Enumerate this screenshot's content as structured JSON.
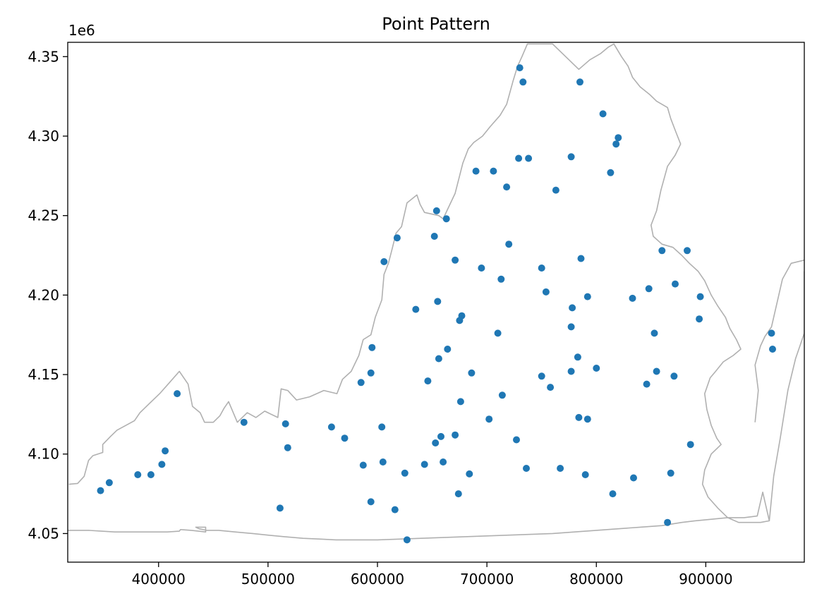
{
  "chart_data": {
    "type": "scatter",
    "title": "Point Pattern",
    "xlabel": "",
    "ylabel": "",
    "y_offset_label": "1e6",
    "xlim": [
      317000,
      990000
    ],
    "ylim": [
      4032000,
      4359000
    ],
    "xticks": [
      400000,
      500000,
      600000,
      700000,
      800000,
      900000
    ],
    "xtick_labels": [
      "400000",
      "500000",
      "600000",
      "700000",
      "800000",
      "900000"
    ],
    "yticks": [
      4050000,
      4100000,
      4150000,
      4200000,
      4250000,
      4300000,
      4350000
    ],
    "ytick_labels": [
      "4.05",
      "4.10",
      "4.15",
      "4.20",
      "4.25",
      "4.30",
      "4.35"
    ],
    "grid": false,
    "colors": {
      "points": "#1f77b4",
      "boundary": "#b0b0b0",
      "axes": "#000000"
    },
    "boundary": [
      [
        318000,
        4081000
      ],
      [
        326000,
        4081500
      ],
      [
        332000,
        4086000
      ],
      [
        336000,
        4096000
      ],
      [
        340000,
        4099000
      ],
      [
        349000,
        4101000
      ],
      [
        349000,
        4106000
      ],
      [
        356000,
        4111000
      ],
      [
        362000,
        4115000
      ],
      [
        370000,
        4118000
      ],
      [
        378000,
        4121000
      ],
      [
        383000,
        4126000
      ],
      [
        392000,
        4132000
      ],
      [
        401000,
        4138000
      ],
      [
        410000,
        4145000
      ],
      [
        419000,
        4152000
      ],
      [
        427000,
        4144000
      ],
      [
        431000,
        4130000
      ],
      [
        438000,
        4126000
      ],
      [
        442000,
        4120000
      ],
      [
        450000,
        4120000
      ],
      [
        456000,
        4124000
      ],
      [
        460000,
        4129000
      ],
      [
        464000,
        4133000
      ],
      [
        472000,
        4120000
      ],
      [
        481000,
        4126000
      ],
      [
        489000,
        4123000
      ],
      [
        497000,
        4127000
      ],
      [
        509000,
        4123000
      ],
      [
        512000,
        4141000
      ],
      [
        518000,
        4140000
      ],
      [
        526000,
        4134000
      ],
      [
        538000,
        4136000
      ],
      [
        551000,
        4140000
      ],
      [
        563000,
        4138000
      ],
      [
        568000,
        4147000
      ],
      [
        576000,
        4152000
      ],
      [
        583000,
        4162000
      ],
      [
        587000,
        4172000
      ],
      [
        594000,
        4175000
      ],
      [
        598000,
        4186000
      ],
      [
        604000,
        4197000
      ],
      [
        606000,
        4213000
      ],
      [
        610000,
        4220000
      ],
      [
        613000,
        4228000
      ],
      [
        617000,
        4239000
      ],
      [
        622000,
        4243000
      ],
      [
        627000,
        4258000
      ],
      [
        636000,
        4263000
      ],
      [
        639000,
        4257000
      ],
      [
        643000,
        4252000
      ],
      [
        656000,
        4250000
      ],
      [
        660000,
        4248000
      ],
      [
        671000,
        4264000
      ],
      [
        678000,
        4283000
      ],
      [
        683000,
        4292000
      ],
      [
        688000,
        4296000
      ],
      [
        696000,
        4300000
      ],
      [
        703000,
        4306000
      ],
      [
        712000,
        4313000
      ],
      [
        718000,
        4320000
      ],
      [
        724000,
        4335000
      ],
      [
        728000,
        4344000
      ],
      [
        732000,
        4350000
      ],
      [
        737000,
        4358000
      ],
      [
        760000,
        4358000
      ],
      [
        772000,
        4350000
      ],
      [
        784000,
        4342000
      ],
      [
        794000,
        4348000
      ],
      [
        804000,
        4352000
      ],
      [
        811000,
        4356000
      ],
      [
        816000,
        4358000
      ],
      [
        823000,
        4350000
      ],
      [
        829000,
        4344000
      ],
      [
        833000,
        4337000
      ],
      [
        840000,
        4331000
      ],
      [
        849000,
        4326000
      ],
      [
        855000,
        4322000
      ],
      [
        865000,
        4318000
      ],
      [
        868000,
        4311000
      ],
      [
        873000,
        4302000
      ],
      [
        877000,
        4295000
      ],
      [
        872000,
        4288000
      ],
      [
        865000,
        4281000
      ],
      [
        859000,
        4266000
      ],
      [
        855000,
        4253000
      ],
      [
        850000,
        4244000
      ],
      [
        852000,
        4237000
      ],
      [
        860000,
        4232000
      ],
      [
        870000,
        4230000
      ],
      [
        878000,
        4225000
      ],
      [
        885000,
        4220000
      ],
      [
        893000,
        4215000
      ],
      [
        899000,
        4209000
      ],
      [
        905000,
        4200000
      ],
      [
        911000,
        4193000
      ],
      [
        918000,
        4186000
      ],
      [
        922000,
        4179000
      ],
      [
        928000,
        4172000
      ],
      [
        932000,
        4166000
      ],
      [
        925000,
        4162000
      ],
      [
        916000,
        4158000
      ],
      [
        909000,
        4152000
      ],
      [
        904000,
        4148000
      ],
      [
        899000,
        4138000
      ],
      [
        901000,
        4128000
      ],
      [
        905000,
        4118000
      ],
      [
        910000,
        4110000
      ],
      [
        914000,
        4106000
      ],
      [
        905000,
        4100000
      ],
      [
        899000,
        4090000
      ],
      [
        897000,
        4081000
      ],
      [
        902000,
        4073000
      ],
      [
        911000,
        4066000
      ],
      [
        920000,
        4060000
      ],
      [
        930000,
        4057000
      ],
      [
        942000,
        4057000
      ],
      [
        950000,
        4057000
      ],
      [
        958000,
        4058000
      ],
      [
        952000,
        4076000
      ],
      [
        947000,
        4061000
      ],
      [
        935000,
        4060000
      ],
      [
        920000,
        4060000
      ],
      [
        906000,
        4059000
      ],
      [
        890000,
        4058000
      ],
      [
        878000,
        4057000
      ],
      [
        860000,
        4055000
      ],
      [
        840000,
        4054000
      ],
      [
        820000,
        4053000
      ],
      [
        800000,
        4052000
      ],
      [
        780000,
        4051000
      ],
      [
        760000,
        4050000
      ],
      [
        740000,
        4049500
      ],
      [
        720000,
        4049000
      ],
      [
        700000,
        4048500
      ],
      [
        680000,
        4048000
      ],
      [
        660000,
        4047500
      ],
      [
        640000,
        4047000
      ],
      [
        620000,
        4046500
      ],
      [
        600000,
        4046000
      ],
      [
        580000,
        4046000
      ],
      [
        562000,
        4046000
      ],
      [
        548000,
        4046500
      ],
      [
        532000,
        4047000
      ],
      [
        515000,
        4048000
      ],
      [
        500000,
        4049000
      ],
      [
        486000,
        4050000
      ],
      [
        470000,
        4051000
      ],
      [
        455000,
        4052000
      ],
      [
        444000,
        4052000
      ],
      [
        437000,
        4053000
      ],
      [
        434000,
        4054000
      ],
      [
        443000,
        4054000
      ],
      [
        443000,
        4051000
      ],
      [
        430000,
        4052000
      ],
      [
        420000,
        4052500
      ],
      [
        419000,
        4051500
      ],
      [
        408000,
        4051000
      ],
      [
        396000,
        4051000
      ],
      [
        384000,
        4051000
      ],
      [
        372000,
        4051000
      ],
      [
        360000,
        4051000
      ],
      [
        348000,
        4051500
      ],
      [
        336000,
        4052000
      ],
      [
        324000,
        4052000
      ],
      [
        317000,
        4052000
      ]
    ],
    "eastern_shore": [
      [
        945000,
        4120000
      ],
      [
        948000,
        4140000
      ],
      [
        945000,
        4156000
      ],
      [
        950000,
        4168000
      ],
      [
        954000,
        4174000
      ],
      [
        960000,
        4180000
      ],
      [
        966000,
        4198000
      ],
      [
        970000,
        4210000
      ],
      [
        978000,
        4220000
      ],
      [
        990000,
        4222000
      ]
    ],
    "eastern_shore_2": [
      [
        958000,
        4058000
      ],
      [
        962000,
        4086000
      ],
      [
        968000,
        4110000
      ],
      [
        975000,
        4140000
      ],
      [
        982000,
        4160000
      ],
      [
        990000,
        4176000
      ],
      [
        990000,
        4215000
      ]
    ],
    "points": [
      [
        347000,
        4077000
      ],
      [
        355000,
        4082000
      ],
      [
        381000,
        4087000
      ],
      [
        393000,
        4087000
      ],
      [
        403000,
        4093500
      ],
      [
        406000,
        4102000
      ],
      [
        417000,
        4138000
      ],
      [
        478000,
        4120000
      ],
      [
        511000,
        4066000
      ],
      [
        516000,
        4119000
      ],
      [
        518000,
        4104000
      ],
      [
        558000,
        4117000
      ],
      [
        570000,
        4110000
      ],
      [
        585000,
        4145000
      ],
      [
        587000,
        4093000
      ],
      [
        594000,
        4070000
      ],
      [
        594000,
        4151000
      ],
      [
        595000,
        4167000
      ],
      [
        604000,
        4117000
      ],
      [
        605000,
        4095000
      ],
      [
        606000,
        4221000
      ],
      [
        616000,
        4065000
      ],
      [
        618000,
        4236000
      ],
      [
        625000,
        4088000
      ],
      [
        627000,
        4046000
      ],
      [
        635000,
        4191000
      ],
      [
        643000,
        4093500
      ],
      [
        646000,
        4146000
      ],
      [
        652000,
        4237000
      ],
      [
        653000,
        4107000
      ],
      [
        654000,
        4253000
      ],
      [
        655000,
        4196000
      ],
      [
        656000,
        4160000
      ],
      [
        658000,
        4111000
      ],
      [
        660000,
        4095000
      ],
      [
        663000,
        4248000
      ],
      [
        664000,
        4166000
      ],
      [
        671000,
        4112000
      ],
      [
        671000,
        4222000
      ],
      [
        674000,
        4075000
      ],
      [
        675000,
        4184000
      ],
      [
        676000,
        4133000
      ],
      [
        677000,
        4187000
      ],
      [
        684000,
        4087500
      ],
      [
        686000,
        4151000
      ],
      [
        690000,
        4278000
      ],
      [
        695000,
        4217000
      ],
      [
        702000,
        4122000
      ],
      [
        706000,
        4278000
      ],
      [
        710000,
        4176000
      ],
      [
        713000,
        4210000
      ],
      [
        714000,
        4137000
      ],
      [
        718000,
        4268000
      ],
      [
        720000,
        4232000
      ],
      [
        727000,
        4109000
      ],
      [
        729000,
        4286000
      ],
      [
        730000,
        4343000
      ],
      [
        733000,
        4334000
      ],
      [
        736000,
        4091000
      ],
      [
        738000,
        4286000
      ],
      [
        763000,
        4266000
      ],
      [
        750000,
        4149000
      ],
      [
        750000,
        4217000
      ],
      [
        754000,
        4202000
      ],
      [
        758000,
        4142000
      ],
      [
        767000,
        4091000
      ],
      [
        777000,
        4180000
      ],
      [
        777000,
        4152000
      ],
      [
        777000,
        4287000
      ],
      [
        778000,
        4192000
      ],
      [
        783000,
        4161000
      ],
      [
        784000,
        4123000
      ],
      [
        785000,
        4334000
      ],
      [
        786000,
        4223000
      ],
      [
        790000,
        4087000
      ],
      [
        792000,
        4122000
      ],
      [
        792000,
        4199000
      ],
      [
        800000,
        4154000
      ],
      [
        806000,
        4314000
      ],
      [
        813000,
        4277000
      ],
      [
        815000,
        4075000
      ],
      [
        818000,
        4295000
      ],
      [
        820000,
        4299000
      ],
      [
        833000,
        4198000
      ],
      [
        834000,
        4085000
      ],
      [
        846000,
        4144000
      ],
      [
        848000,
        4204000
      ],
      [
        853000,
        4176000
      ],
      [
        855000,
        4152000
      ],
      [
        860000,
        4228000
      ],
      [
        865000,
        4057000
      ],
      [
        868000,
        4088000
      ],
      [
        871000,
        4149000
      ],
      [
        872000,
        4207000
      ],
      [
        883000,
        4228000
      ],
      [
        886000,
        4106000
      ],
      [
        894000,
        4185000
      ],
      [
        895000,
        4199000
      ],
      [
        960000,
        4176000
      ],
      [
        961000,
        4166000
      ]
    ]
  }
}
